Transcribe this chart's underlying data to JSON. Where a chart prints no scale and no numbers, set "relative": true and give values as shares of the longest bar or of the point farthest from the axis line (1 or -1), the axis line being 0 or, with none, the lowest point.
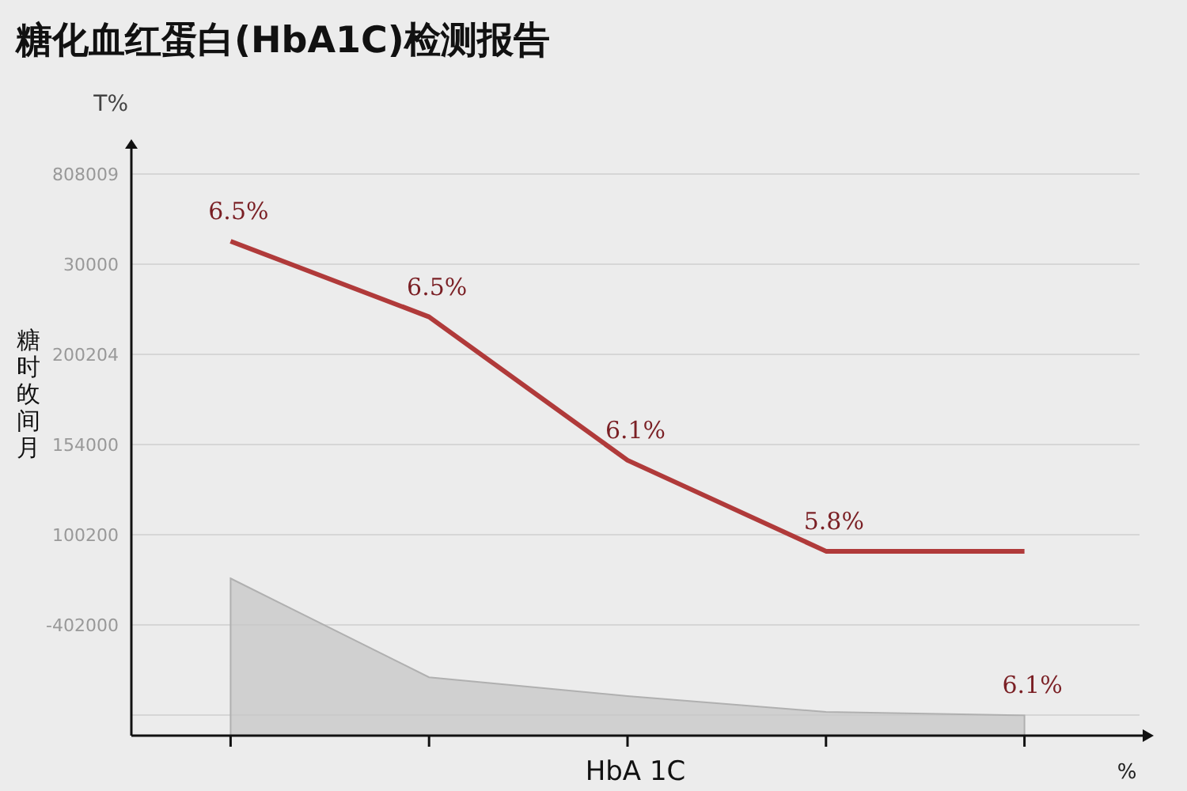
{
  "chart_data": {
    "type": "line",
    "title": "糖化血红蛋白(HbA1C)检测报告",
    "xlabel": "HbA 1C",
    "ylabel": "糖时敀间月",
    "relative": true,
    "grid": "y",
    "marker": "none",
    "categories": [
      null,
      null,
      null,
      null,
      null
    ],
    "series": [
      {
        "type": "area",
        "color": "#c4c4c4",
        "values": [
          0.318,
          0.118,
          0.08,
          0.048,
          0.041
        ]
      },
      {
        "type": "line",
        "color": "#b03a3a",
        "values": [
          1,
          0.847,
          0.557,
          0.373,
          0.373
        ]
      }
    ],
    "annotations": [
      "T%",
      "%",
      "808009",
      "30000",
      "200204",
      "154000",
      "100200",
      "-402000",
      "6.5%",
      "6.5%",
      "6.1%",
      "5.8%",
      "6.1%"
    ]
  }
}
